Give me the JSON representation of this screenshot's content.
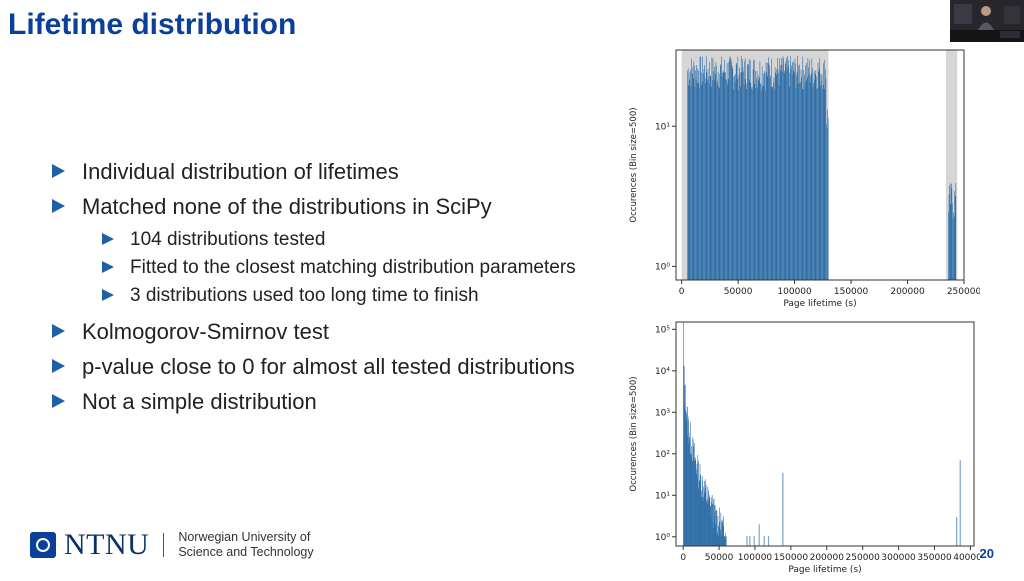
{
  "slide": {
    "title": "Lifetime distribution",
    "number": "20"
  },
  "bullets": [
    {
      "level": 1,
      "text": "Individual distribution of lifetimes"
    },
    {
      "level": 1,
      "text": "Matched none of the distributions in SciPy"
    },
    {
      "level": 2,
      "text": "104 distributions tested"
    },
    {
      "level": 2,
      "text": "Fitted to the closest matching distribution parameters"
    },
    {
      "level": 2,
      "text": "3 distributions used too long time to finish"
    },
    {
      "level": 1,
      "text": "Kolmogorov-Smirnov test"
    },
    {
      "level": 1,
      "text": "p-value close to 0 for almost all tested distributions"
    },
    {
      "level": 1,
      "text": "Not a simple distribution"
    }
  ],
  "footer": {
    "logo_text": "NTNU",
    "institution_line1": "Norwegian University of",
    "institution_line2": "Science and Technology",
    "logo_color": "#0a3f9a"
  },
  "colors": {
    "title": "#0a3f9a",
    "bar": "#2f6ea8",
    "highlight": "#d6d6d6"
  },
  "chart_data": [
    {
      "type": "bar",
      "title": "",
      "xlabel": "Page lifetime (s)",
      "ylabel": "Occurences (Bin size=500)",
      "yscale": "log",
      "xlim": [
        -5000,
        250000
      ],
      "ylim": [
        0.8,
        35
      ],
      "xticks": [
        0,
        50000,
        100000,
        150000,
        200000,
        250000
      ],
      "yticks": [
        {
          "value": 1,
          "label": "10⁰"
        },
        {
          "value": 10,
          "label": "10¹"
        }
      ],
      "highlight_ranges": [
        [
          0,
          130000
        ],
        [
          234000,
          244000
        ]
      ],
      "segments": [
        {
          "x_start": 5000,
          "x_end": 128000,
          "y_min": 18,
          "y_max": 32
        },
        {
          "x_start": 128000,
          "x_end": 130000,
          "y_min": 8,
          "y_max": 15
        },
        {
          "x_start": 236000,
          "x_end": 243000,
          "y_min": 2,
          "y_max": 4
        }
      ]
    },
    {
      "type": "bar",
      "title": "",
      "xlabel": "Page lifetime (s)",
      "ylabel": "Occurences (Bin size=500)",
      "yscale": "log",
      "xlim": [
        -10000,
        405000
      ],
      "ylim": [
        0.6,
        150000
      ],
      "xticks": [
        0,
        50000,
        100000,
        150000,
        200000,
        250000,
        300000,
        350000,
        400000
      ],
      "yticks": [
        {
          "value": 1,
          "label": "10⁰"
        },
        {
          "value": 10,
          "label": "10¹"
        },
        {
          "value": 100,
          "label": "10²"
        },
        {
          "value": 1000,
          "label": "10³"
        },
        {
          "value": 10000,
          "label": "10⁴"
        },
        {
          "value": 100000,
          "label": "10⁵"
        }
      ],
      "decay": {
        "x_start": 0,
        "x_end": 60000,
        "y_start": 100000,
        "y_end": 1
      },
      "spikes": [
        {
          "x": 88000,
          "y": 1
        },
        {
          "x": 92000,
          "y": 1
        },
        {
          "x": 98000,
          "y": 1
        },
        {
          "x": 105000,
          "y": 2
        },
        {
          "x": 112000,
          "y": 1
        },
        {
          "x": 118000,
          "y": 1
        },
        {
          "x": 138000,
          "y": 35
        },
        {
          "x": 380000,
          "y": 3
        },
        {
          "x": 385000,
          "y": 70
        }
      ]
    }
  ]
}
